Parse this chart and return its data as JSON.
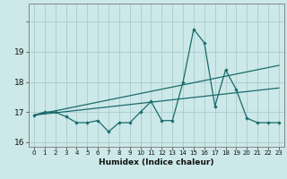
{
  "title": "",
  "xlabel": "Humidex (Indice chaleur)",
  "x": [
    0,
    1,
    2,
    3,
    4,
    5,
    6,
    7,
    8,
    9,
    10,
    11,
    12,
    13,
    14,
    15,
    16,
    17,
    18,
    19,
    20,
    21,
    22,
    23
  ],
  "y_main": [
    16.9,
    17.0,
    17.0,
    16.85,
    16.65,
    16.65,
    16.72,
    16.35,
    16.65,
    16.65,
    17.0,
    17.35,
    16.72,
    16.72,
    18.0,
    19.75,
    19.3,
    17.2,
    18.4,
    17.75,
    16.8,
    16.65,
    16.65,
    16.65
  ],
  "trend1_x": [
    0,
    23
  ],
  "trend1_y": [
    16.9,
    17.8
  ],
  "trend2_x": [
    0,
    23
  ],
  "trend2_y": [
    16.9,
    18.55
  ],
  "background_color": "#cce8e8",
  "grid_color": "#aacccc",
  "line_color": "#1a6b6b",
  "ylim": [
    15.85,
    20.6
  ],
  "yticks": [
    16,
    17,
    18,
    19,
    20
  ],
  "ytick_labels": [
    "16",
    "17",
    "18",
    "19",
    ""
  ],
  "xlim": [
    -0.5,
    23.5
  ]
}
